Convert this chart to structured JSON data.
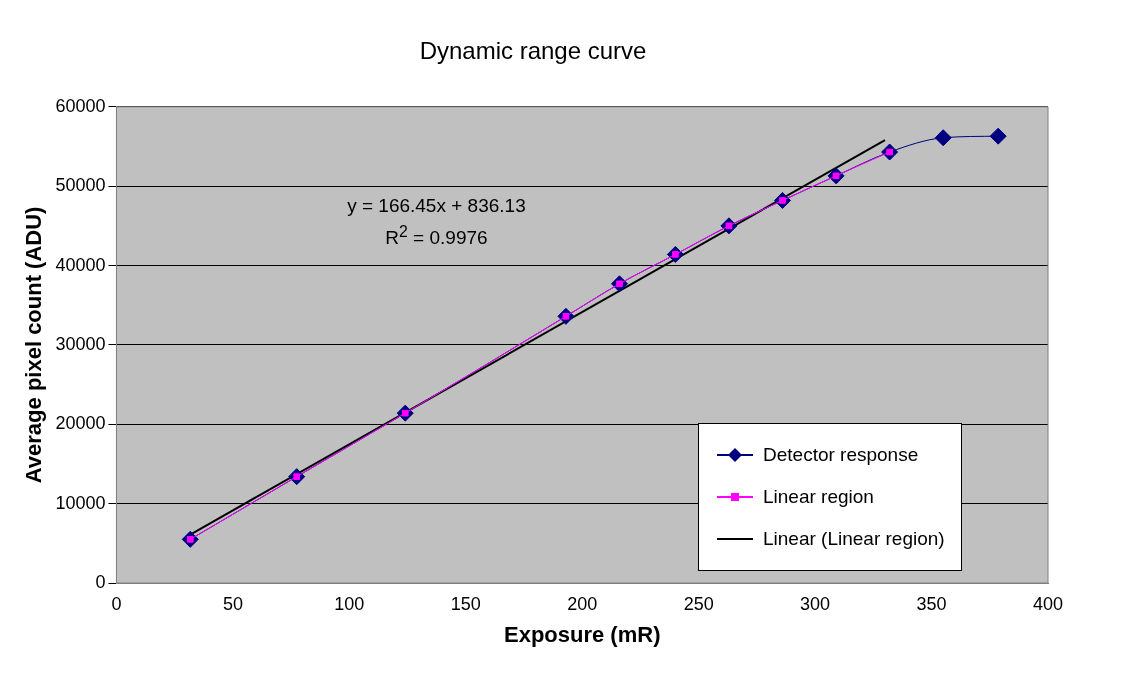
{
  "chart_data": {
    "type": "line",
    "title": "Dynamic range curve",
    "xlabel": "Exposure (mR)",
    "ylabel": "Average pixel count (ADU)",
    "xlim": [
      0,
      400
    ],
    "xticks": [
      0,
      50,
      100,
      150,
      200,
      250,
      300,
      350,
      400
    ],
    "ylim": [
      0,
      60000
    ],
    "yticks": [
      0,
      10000,
      20000,
      30000,
      40000,
      50000,
      60000
    ],
    "grid": "y",
    "legend": "bottom right",
    "line_style": "solid",
    "annotations": [
      "y = 166.45x + 836.13",
      "R$^{2}$ = 0.9976"
    ],
    "series": [
      {
        "name": "Detector response",
        "color": "#000080",
        "marker": "diamond",
        "x": [
          31.7,
          77.4,
          124,
          193,
          216,
          240,
          263,
          286,
          309,
          332,
          355,
          378.6
        ],
        "values": [
          5500,
          13400,
          21400,
          33600,
          37700,
          41400,
          45000,
          48200,
          51300,
          54300,
          56100,
          56300
        ]
      },
      {
        "name": "Linear region",
        "color": "#ff00ff",
        "marker": "square",
        "x": [
          31.7,
          77.4,
          124,
          193,
          216,
          240,
          263,
          286,
          309,
          332
        ],
        "values": [
          5500,
          13400,
          21400,
          33600,
          37700,
          41400,
          45000,
          48200,
          51300,
          54300
        ]
      },
      {
        "name": "Linear (Linear region)",
        "color": "#000000",
        "marker": "none",
        "x": [
          31.7,
          330
        ],
        "values": [
          6100,
          55800
        ]
      }
    ]
  }
}
